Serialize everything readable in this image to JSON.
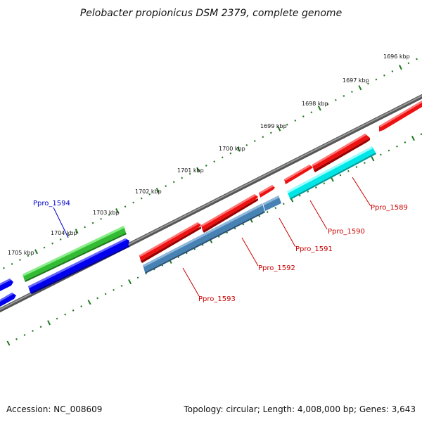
{
  "title": "Pelobacter propionicus DSM 2379, complete genome",
  "footer": {
    "accession": "Accession: NC_008609",
    "summary": "Topology: circular; Length: 4,008,000 bp; Genes: 3,643"
  },
  "kbp_labels": [
    "1696 kbp",
    "1697 kbp",
    "1698 kbp",
    "1699 kbp",
    "1700 kbp",
    "1701 kbp",
    "1702 kbp",
    "1703 kbp",
    "1704 kbp",
    "1705 kbp"
  ],
  "gene_labels": [
    {
      "id": "Ppro_1589",
      "color": "#cc0000"
    },
    {
      "id": "Ppro_1590",
      "color": "#cc0000"
    },
    {
      "id": "Ppro_1591",
      "color": "#cc0000"
    },
    {
      "id": "Ppro_1592",
      "color": "#cc0000"
    },
    {
      "id": "Ppro_1593",
      "color": "#cc0000"
    },
    {
      "id": "Ppro_1594",
      "color": "#0000cc"
    }
  ],
  "colors": {
    "backbone": "#777777",
    "tick": "#1f7a1f",
    "forward_gene": "#ee1111",
    "cds_steelblue": "#4682b4",
    "cds_cyan": "#00e5e5",
    "reverse_gene": "#0000ee",
    "green_gene": "#33bb33"
  }
}
